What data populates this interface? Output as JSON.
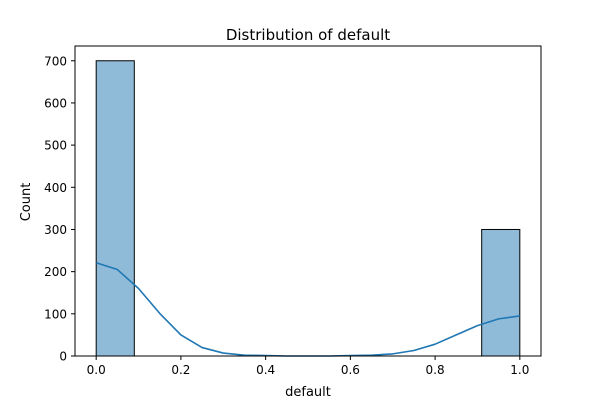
{
  "chart_data": {
    "type": "bar",
    "title": "Distribution of default",
    "xlabel": "default",
    "ylabel": "Count",
    "xlim": [
      -0.05,
      1.05
    ],
    "ylim": [
      0,
      735
    ],
    "xticks": [
      0.0,
      0.2,
      0.4,
      0.6,
      0.8,
      1.0
    ],
    "xtick_labels": [
      "0.0",
      "0.2",
      "0.4",
      "0.6",
      "0.8",
      "1.0"
    ],
    "yticks": [
      0,
      100,
      200,
      300,
      400,
      500,
      600,
      700
    ],
    "ytick_labels": [
      "0",
      "100",
      "200",
      "300",
      "400",
      "500",
      "600",
      "700"
    ],
    "bins": [
      {
        "x0": 0.0,
        "x1": 0.09,
        "count": 700
      },
      {
        "x0": 0.91,
        "x1": 1.0,
        "count": 300
      }
    ],
    "kde": {
      "x": [
        0.0,
        0.05,
        0.1,
        0.15,
        0.2,
        0.25,
        0.3,
        0.35,
        0.4,
        0.45,
        0.5,
        0.55,
        0.6,
        0.65,
        0.7,
        0.75,
        0.8,
        0.85,
        0.9,
        0.95,
        1.0
      ],
      "y": [
        221,
        205,
        160,
        101,
        50,
        20,
        7,
        2,
        1,
        0,
        0,
        0,
        1,
        2,
        5,
        13,
        28,
        50,
        72,
        88,
        95
      ]
    },
    "grid": false,
    "legend": "none",
    "colors": {
      "bar_fill": "#8fbbd9",
      "bar_edge": "#000000",
      "kde_line": "#1f77b4"
    }
  }
}
